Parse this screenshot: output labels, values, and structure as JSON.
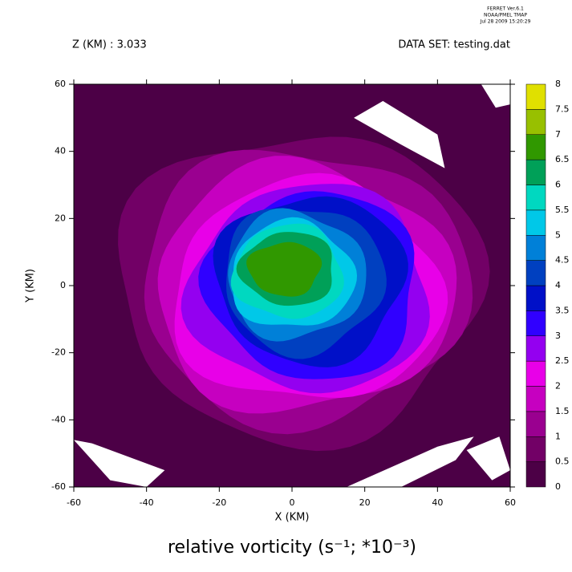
{
  "chart_data": {
    "type": "contour",
    "header": [
      "FERRET  Ver.6.1",
      "NOAA/PMEL TMAP",
      "Jul 28 2009 15:20:29"
    ],
    "left_note": "Z (KM) : 3.033",
    "right_note": "DATA SET: testing.dat",
    "title": "relative vorticity (s⁻¹; *10⁻³)",
    "xlabel": "X (KM)",
    "ylabel": "Y (KM)",
    "xlim": [
      -60,
      60
    ],
    "ylim": [
      -60,
      60
    ],
    "xticks": [
      -60,
      -40,
      -20,
      0,
      20,
      40,
      60
    ],
    "yticks": [
      -60,
      -40,
      -20,
      0,
      20,
      40,
      60
    ],
    "levels": [
      0,
      0.5,
      1,
      1.5,
      2,
      2.5,
      3,
      3.5,
      4,
      4.5,
      5,
      5.5,
      6,
      6.5,
      7,
      7.5,
      8
    ],
    "colors": [
      "#4c0046",
      "#720066",
      "#9a0090",
      "#c600c0",
      "#e800e8",
      "#9400f0",
      "#3000ff",
      "#0010c8",
      "#0040c0",
      "#0080d8",
      "#00c8e8",
      "#00d8c0",
      "#00a058",
      "#309800",
      "#98c000",
      "#e0e000",
      "#ff9800",
      "#ff5000",
      "#ff0000",
      "#c00000",
      "#700000"
    ]
  }
}
